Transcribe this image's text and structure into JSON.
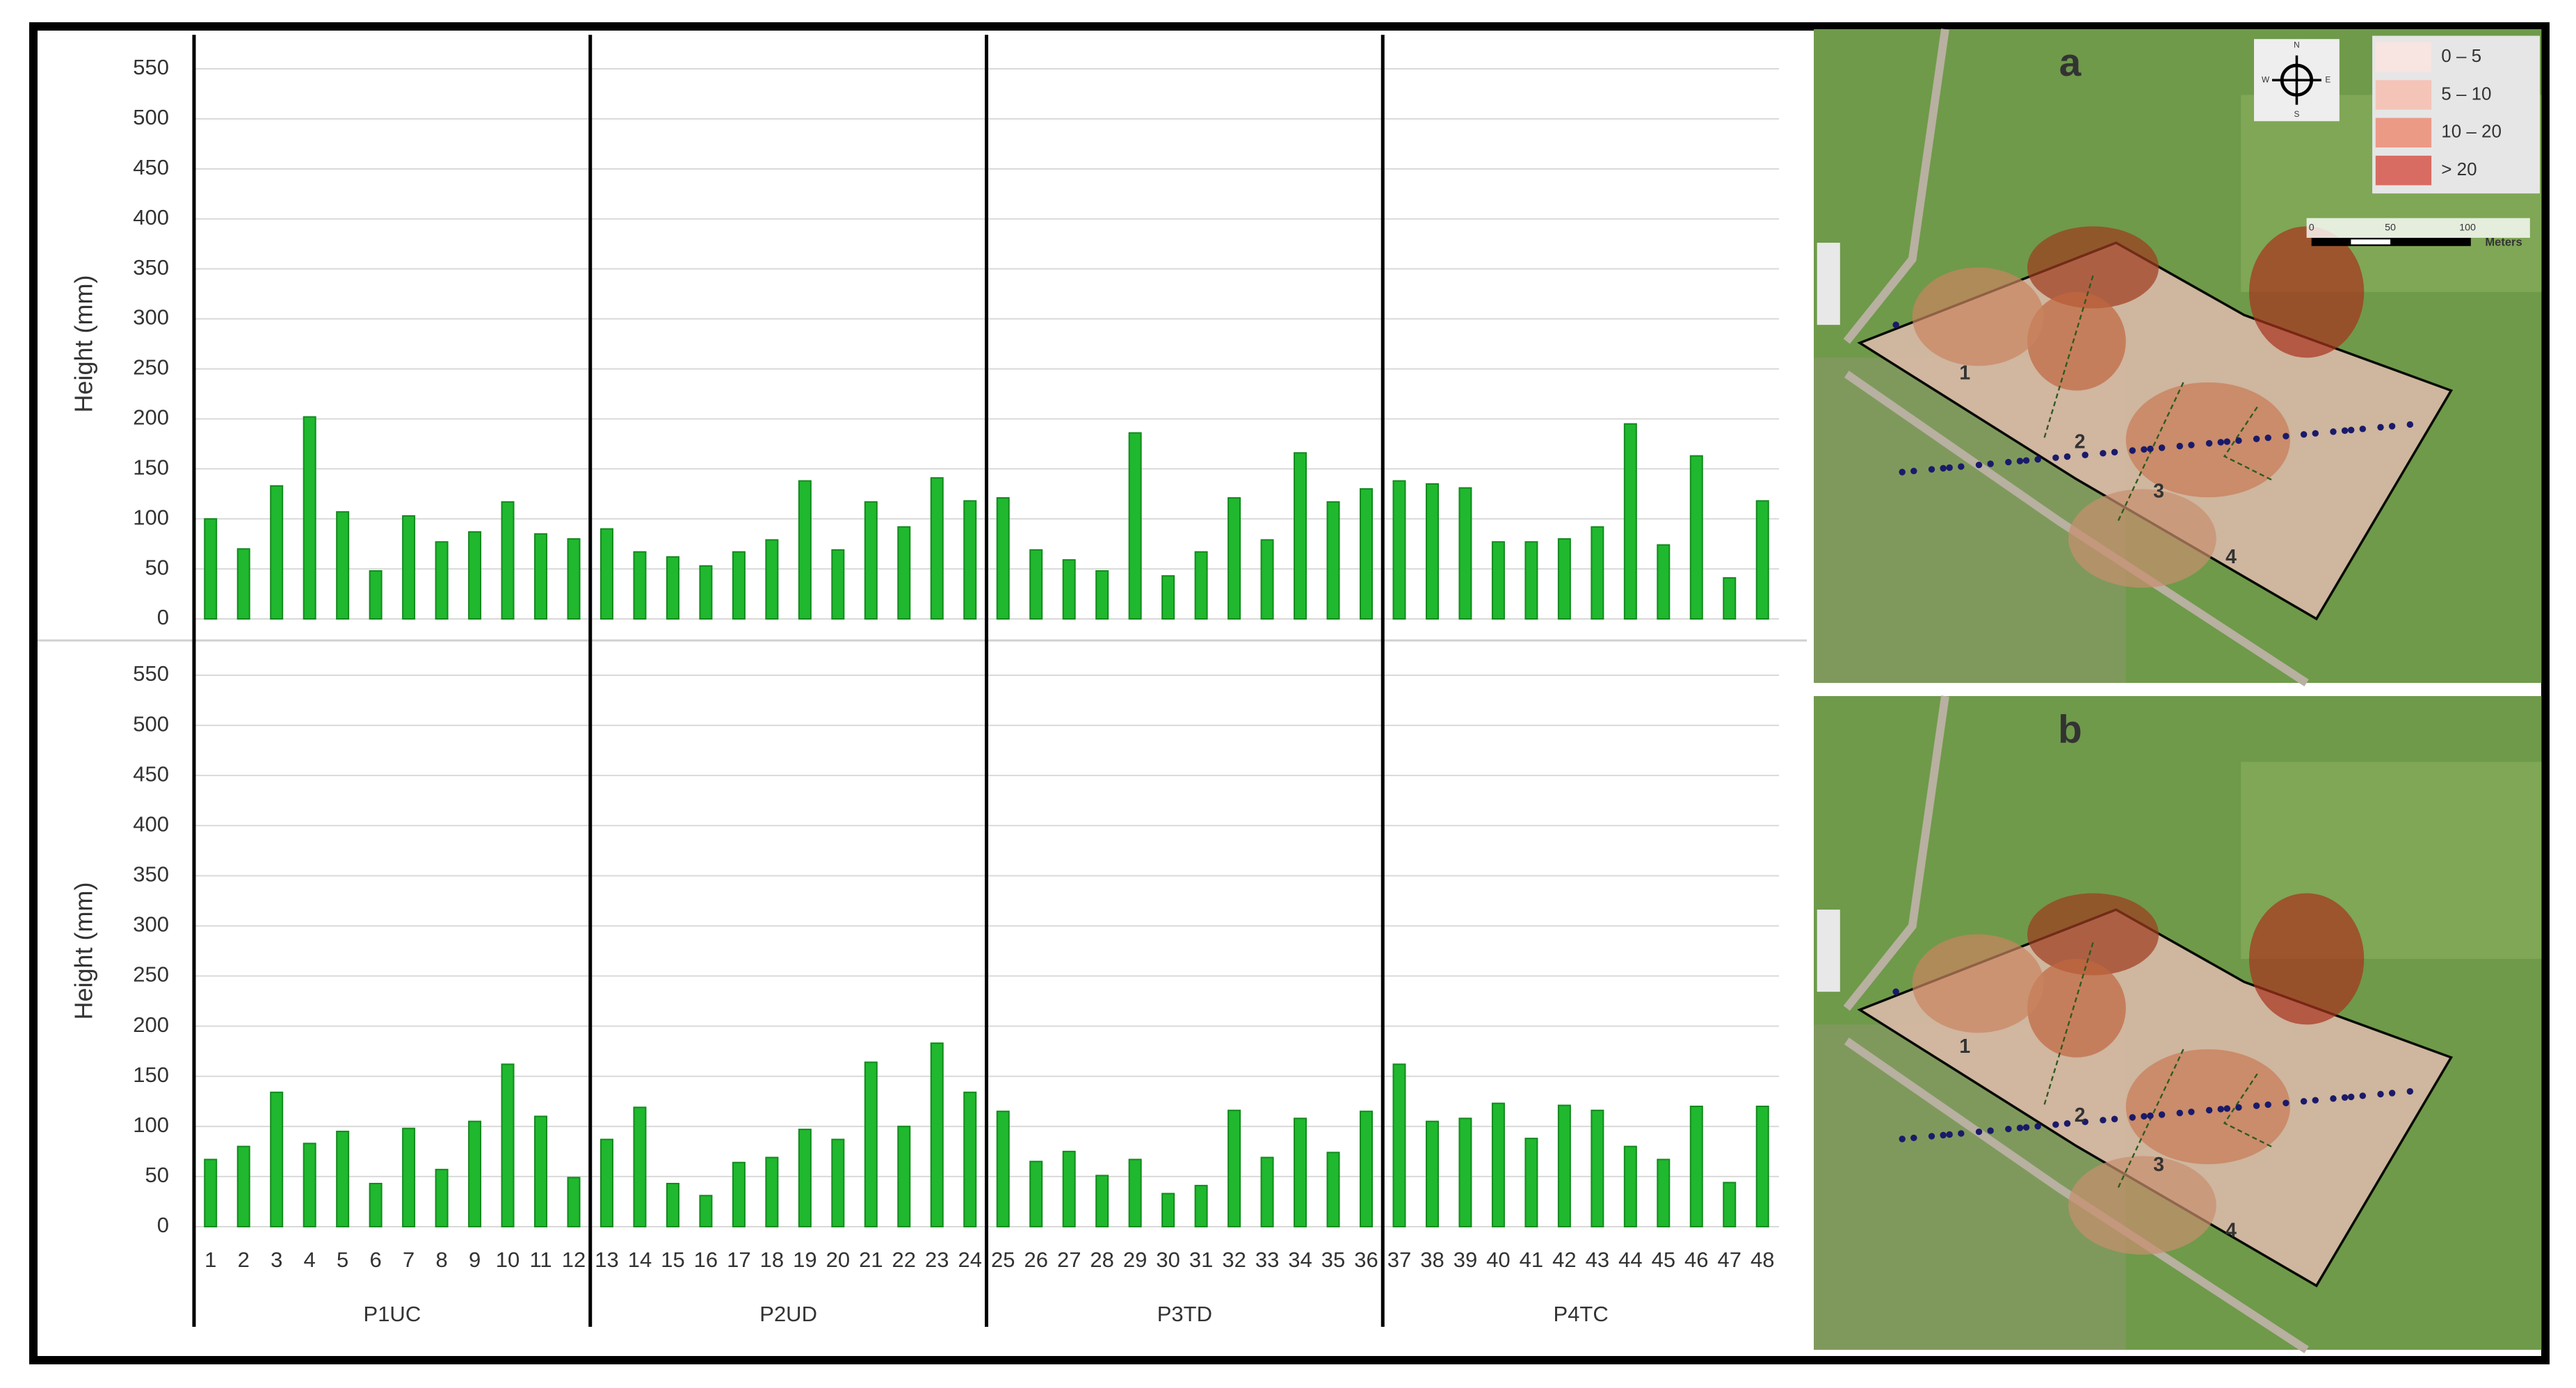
{
  "chart_data": [
    {
      "type": "bar",
      "y_label": "Height (mm)",
      "color": "#1fb82e",
      "grid": true,
      "ylim": [
        0,
        550
      ],
      "yticks": [
        0,
        50,
        100,
        150,
        200,
        250,
        300,
        350,
        400,
        450,
        500,
        550
      ],
      "values": [
        100,
        70,
        133,
        202,
        107,
        48,
        103,
        77,
        87,
        117,
        85,
        80,
        90,
        67,
        62,
        53,
        67,
        79,
        138,
        69,
        117,
        92,
        141,
        118,
        121,
        69,
        59,
        48,
        186,
        43,
        67,
        121,
        79,
        166,
        117,
        130,
        138,
        135,
        131,
        77,
        77,
        80,
        92,
        195,
        74,
        163,
        41,
        118
      ]
    },
    {
      "type": "bar",
      "y_label": "Height (mm)",
      "color": "#1fb82e",
      "grid": true,
      "ylim": [
        0,
        550
      ],
      "yticks": [
        0,
        50,
        100,
        150,
        200,
        250,
        300,
        350,
        400,
        450,
        500,
        550
      ],
      "categories": [
        "1",
        "2",
        "3",
        "4",
        "5",
        "6",
        "7",
        "8",
        "9",
        "10",
        "11",
        "12",
        "13",
        "14",
        "15",
        "16",
        "17",
        "18",
        "19",
        "20",
        "21",
        "22",
        "23",
        "24",
        "25",
        "26",
        "27",
        "28",
        "29",
        "30",
        "31",
        "32",
        "33",
        "34",
        "35",
        "36",
        "37",
        "38",
        "39",
        "40",
        "41",
        "42",
        "43",
        "44",
        "45",
        "46",
        "47",
        "48"
      ],
      "groups": [
        "P1UC",
        "P2UD",
        "P3TD",
        "P4TC"
      ],
      "values": [
        67,
        80,
        134,
        83,
        95,
        43,
        98,
        57,
        105,
        162,
        110,
        49,
        87,
        119,
        43,
        31,
        64,
        69,
        97,
        87,
        164,
        100,
        183,
        134,
        115,
        65,
        75,
        51,
        67,
        33,
        41,
        116,
        69,
        108,
        74,
        115,
        162,
        105,
        108,
        123,
        88,
        121,
        116,
        80,
        67,
        120,
        44,
        120
      ]
    }
  ],
  "map": {
    "panels": [
      "a",
      "b"
    ],
    "legend": [
      "0 – 5",
      "5 – 10",
      "10 – 20",
      "> 20"
    ],
    "scale": [
      "0",
      "50",
      "100",
      "Meters"
    ],
    "compass": [
      "N",
      "S",
      "E",
      "W"
    ],
    "zones": [
      "1",
      "2",
      "3",
      "4"
    ]
  }
}
